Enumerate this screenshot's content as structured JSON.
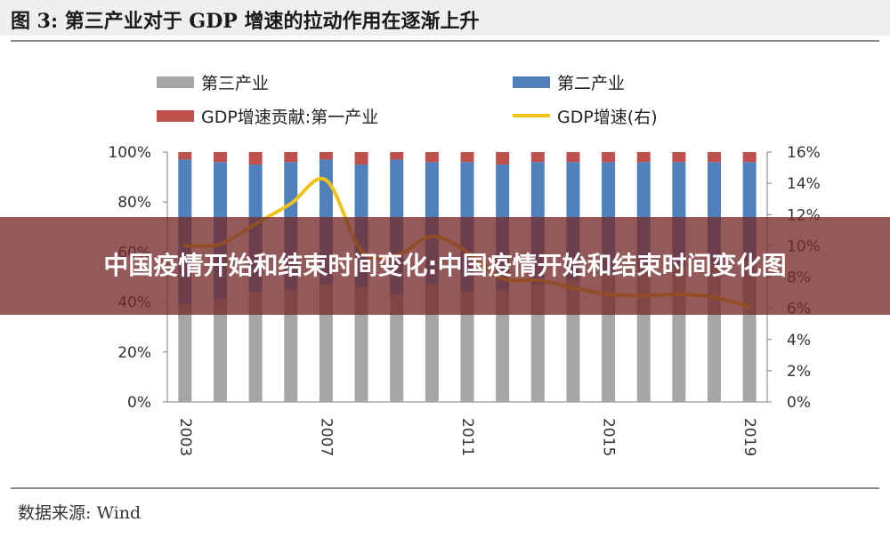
{
  "figure_title": "图 3:  第三产业对于 GDP 增速的拉动作用在逐渐上升",
  "source_text": "数据来源:  Wind",
  "overlay_caption": "中国疫情开始和结束时间变化:中国疫情开始和结束时间变化图",
  "colors": {
    "tertiary": "#a6a6a6",
    "secondary": "#4f81bd",
    "primary": "#c0504d",
    "gdp_line": "#f2c218",
    "overlay": "#762c2c"
  },
  "chart_data": {
    "type": "bar",
    "stacked": true,
    "categories": [
      "2003",
      "2004",
      "2005",
      "2006",
      "2007",
      "2008",
      "2009",
      "2010",
      "2011",
      "2012",
      "2013",
      "2014",
      "2015",
      "2016",
      "2017",
      "2018",
      "2019"
    ],
    "x_tick_labels": [
      "2003",
      "2007",
      "2011",
      "2015",
      "2019"
    ],
    "series": [
      {
        "name": "第三产业",
        "values": [
          39,
          41,
          44,
          45,
          47,
          46,
          43,
          47,
          44,
          45,
          47,
          49,
          51,
          53,
          54,
          55,
          56
        ]
      },
      {
        "name": "第二产业",
        "values": [
          58,
          55,
          51,
          51,
          50,
          49,
          54,
          49,
          52,
          50,
          49,
          47,
          45,
          43,
          42,
          41,
          40
        ]
      },
      {
        "name": "GDP增速贡献:第一产业",
        "values": [
          3,
          4,
          5,
          4,
          3,
          5,
          3,
          4,
          4,
          5,
          4,
          4,
          4,
          4,
          4,
          4,
          4
        ]
      },
      {
        "name": "GDP增速(右)",
        "axis": "right",
        "type": "line",
        "values": [
          10.0,
          10.1,
          11.4,
          12.7,
          14.2,
          9.7,
          9.4,
          10.6,
          9.6,
          7.9,
          7.8,
          7.3,
          6.9,
          6.8,
          6.9,
          6.7,
          6.1
        ]
      }
    ],
    "y_left": {
      "ticks": [
        "0%",
        "20%",
        "40%",
        "60%",
        "80%",
        "100%"
      ],
      "range": [
        0,
        100
      ]
    },
    "y_right": {
      "ticks": [
        "0%",
        "2%",
        "4%",
        "6%",
        "8%",
        "10%",
        "12%",
        "14%",
        "16%"
      ],
      "range": [
        0,
        16
      ]
    },
    "legend": "top, two columns",
    "grid": false
  }
}
